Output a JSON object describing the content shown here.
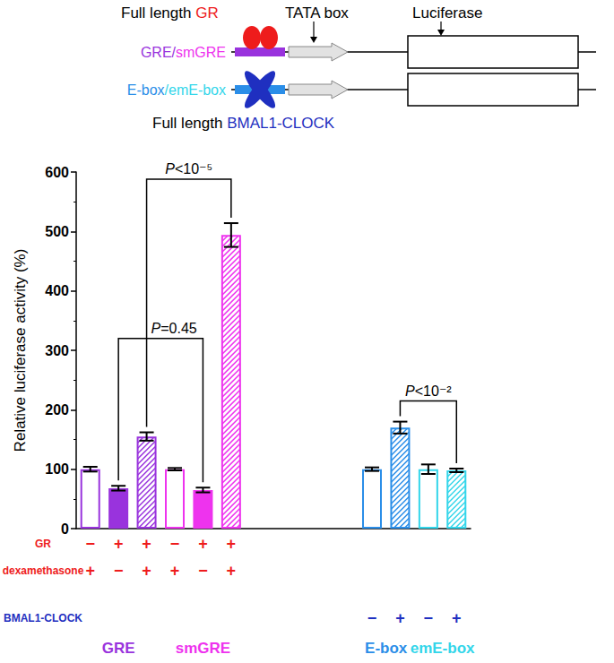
{
  "chart_data": {
    "type": "bar",
    "schematic": {
      "heading": [
        {
          "text": "Full length ",
          "color": "#000000"
        },
        {
          "text": "GR",
          "color": "#ee1c1c"
        }
      ],
      "promoter": "TATA box",
      "reporter": "Luciferase",
      "constructs": [
        {
          "label": [
            {
              "text": "GRE",
              "color": "#9933dd"
            },
            {
              "text": "/",
              "color": "#9933dd"
            },
            {
              "text": "smGRE",
              "color": "#ee33ee"
            }
          ],
          "color": "#9933dd"
        },
        {
          "label": [
            {
              "text": "E-box",
              "color": "#2b8ee8"
            },
            {
              "text": "/",
              "color": "#33d6ea"
            },
            {
              "text": "emE-box",
              "color": "#33d6ea"
            }
          ],
          "color": "#2b8ee8"
        }
      ],
      "footer": [
        {
          "text": "Full length ",
          "color": "#000000"
        },
        {
          "text": "BMAL1-CLOCK",
          "color": "#1f2fc0"
        }
      ]
    },
    "y_label": "Relative luciferase activity (%)",
    "categories": [
      null,
      null,
      null,
      null,
      null,
      null,
      null,
      null,
      null,
      null,
      null,
      null,
      null,
      null
    ],
    "values": [
      100,
      68,
      155,
      100,
      65,
      494,
      null,
      null,
      null,
      null,
      100,
      170,
      100,
      98
    ],
    "errors": [
      4,
      4,
      7,
      2,
      4,
      20,
      null,
      null,
      null,
      null,
      3,
      10,
      8,
      3
    ],
    "colors": [
      "#9933dd",
      "#9933dd",
      "#9933dd",
      "#ee33ee",
      "#ee33ee",
      "#ee33ee",
      null,
      null,
      null,
      null,
      "#2b8ee8",
      "#2b8ee8",
      "#33d6ea",
      "#33d6ea"
    ],
    "group_labels": [
      "GRE",
      "GRE",
      "GRE",
      "smGRE",
      "smGRE",
      "smGRE",
      null,
      null,
      null,
      null,
      "E-box",
      "E-box",
      "emE-box",
      "emE-box"
    ],
    "condition_rows": [
      {
        "label": "GR",
        "color": "#ee1c1c",
        "marks": [
          "−",
          "+",
          "+",
          "−",
          "+",
          "+",
          null,
          null,
          null,
          null,
          null,
          null,
          null,
          null
        ]
      },
      {
        "label": "dexamethasone",
        "color": "#ee1c1c",
        "marks": [
          "+",
          "−",
          "+",
          "+",
          "−",
          "+",
          null,
          null,
          null,
          null,
          null,
          null,
          null,
          null
        ]
      },
      {
        "label": "BMAL1-CLOCK",
        "color": "#1f2fc0",
        "marks": [
          null,
          null,
          null,
          null,
          null,
          null,
          null,
          null,
          null,
          null,
          "−",
          "+",
          "−",
          "+"
        ]
      }
    ],
    "annotations": [
      {
        "text": "P<10⁻⁵",
        "from": 2,
        "to": 5,
        "y": 588
      },
      {
        "text": "P=0.45",
        "from": 1,
        "to": 4,
        "y": 320
      },
      {
        "text": "P<10⁻²",
        "from": 11,
        "to": 13,
        "y": 215
      }
    ],
    "ylim": [
      0,
      600
    ],
    "yticks": [
      0,
      100,
      200,
      300,
      400,
      500,
      600
    ],
    "grid": false,
    "tick_labels": "y"
  }
}
